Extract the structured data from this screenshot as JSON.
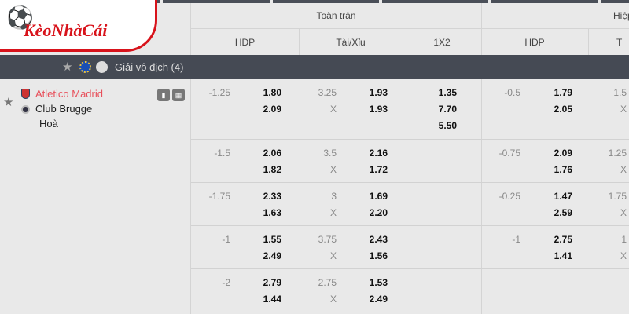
{
  "logo": {
    "text": "KèoNhàCái"
  },
  "header": {
    "full_match": "Toàn trận",
    "half": "Hiệp",
    "cols": [
      "HDP",
      "Tài/Xỉu",
      "1X2"
    ],
    "half_cols": [
      "HDP",
      "T"
    ]
  },
  "league": {
    "name": "Giải vô địch (4)",
    "icons": [
      "star-icon",
      "europe-flag-icon",
      "league-logo-icon"
    ]
  },
  "match": {
    "home": "Atletico Madrid",
    "away": "Club Brugge",
    "draw": "Hoà",
    "home_color": "#e8505b"
  },
  "rows": [
    {
      "hdp": "-1.25",
      "hdp_home": "1.80",
      "hdp_away": "2.09",
      "ou": "3.25",
      "ou_x": "X",
      "ou_over": "1.93",
      "ou_under": "1.93",
      "x12": [
        "1.35",
        "7.70",
        "5.50"
      ],
      "h_hdp": "-0.5",
      "h_home": "1.79",
      "h_away": "2.05",
      "h_ou": "1.5",
      "h_x": "X"
    },
    {
      "hdp": "-1.5",
      "hdp_home": "2.06",
      "hdp_away": "1.82",
      "ou": "3.5",
      "ou_x": "X",
      "ou_over": "2.16",
      "ou_under": "1.72",
      "h_hdp": "-0.75",
      "h_home": "2.09",
      "h_away": "1.76",
      "h_ou": "1.25",
      "h_x": "X"
    },
    {
      "hdp": "-1.75",
      "hdp_home": "2.33",
      "hdp_away": "1.63",
      "ou": "3",
      "ou_x": "X",
      "ou_over": "1.69",
      "ou_under": "2.20",
      "h_hdp": "-0.25",
      "h_home": "1.47",
      "h_away": "2.59",
      "h_ou": "1.75",
      "h_x": "X"
    },
    {
      "hdp": "-1",
      "hdp_home": "1.55",
      "hdp_away": "2.49",
      "ou": "3.75",
      "ou_x": "X",
      "ou_over": "2.43",
      "ou_under": "1.56",
      "h_hdp": "-1",
      "h_home": "2.75",
      "h_away": "1.41",
      "h_ou": "1",
      "h_x": "X"
    },
    {
      "hdp": "-2",
      "hdp_home": "2.79",
      "hdp_away": "1.44",
      "ou": "2.75",
      "ou_x": "X",
      "ou_over": "1.53",
      "ou_under": "2.49"
    }
  ]
}
